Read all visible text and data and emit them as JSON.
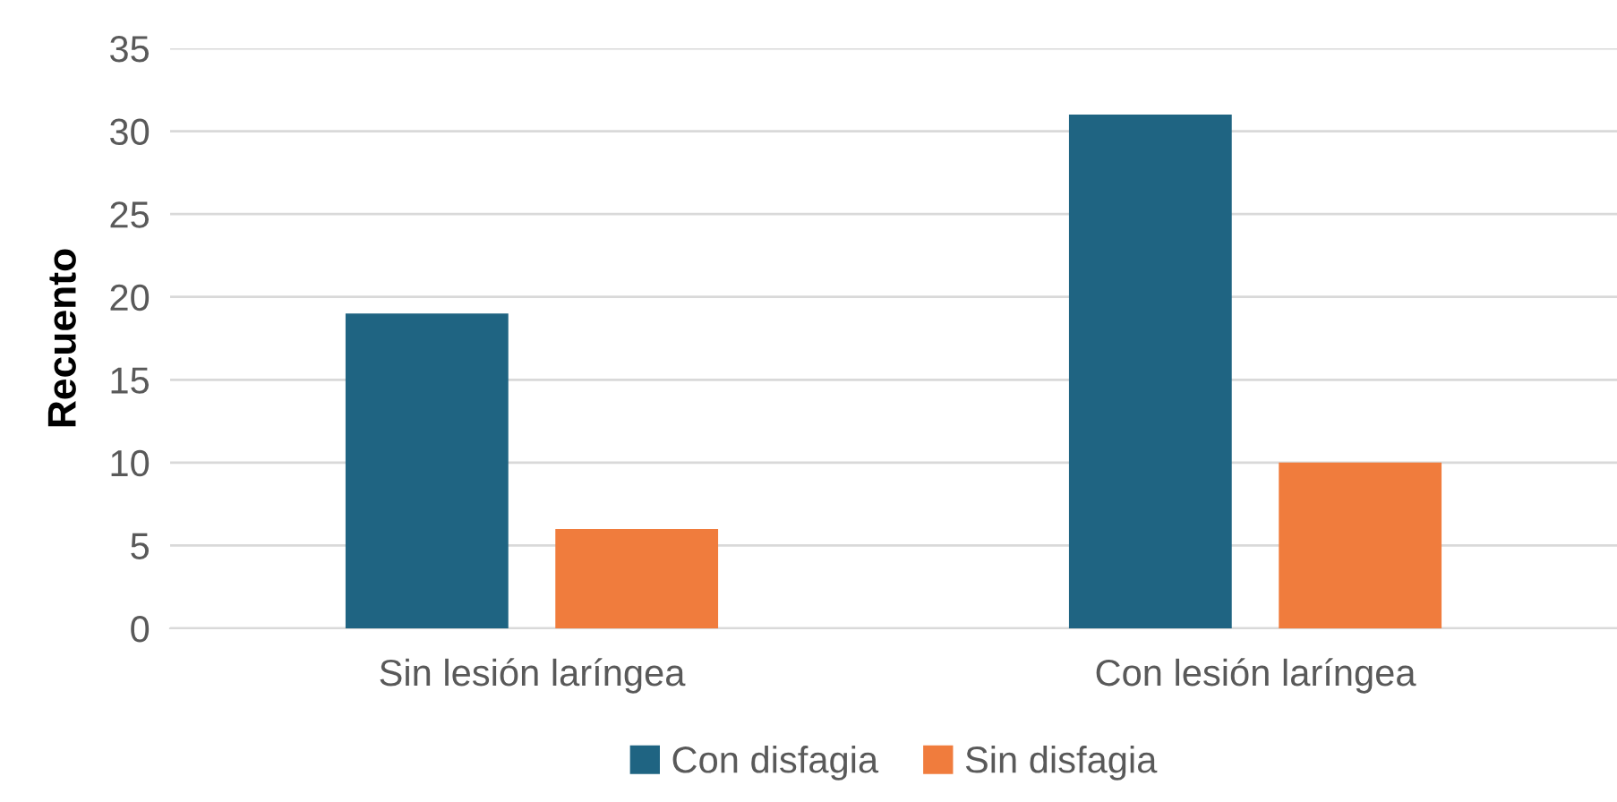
{
  "chart_data": {
    "type": "bar",
    "ylabel": "Recuento",
    "categories": [
      "Sin lesión laríngea",
      "Con lesión laríngea"
    ],
    "series": [
      {
        "name": "Con disfagia",
        "color": "#1f6482",
        "values": [
          19,
          31
        ]
      },
      {
        "name": "Sin disfagia",
        "color": "#f07c3d",
        "values": [
          6,
          10
        ]
      }
    ],
    "ylim": [
      0,
      35
    ],
    "yticks": [
      0,
      5,
      10,
      15,
      20,
      25,
      30,
      35
    ],
    "grid": "y",
    "legend": "bottom"
  }
}
